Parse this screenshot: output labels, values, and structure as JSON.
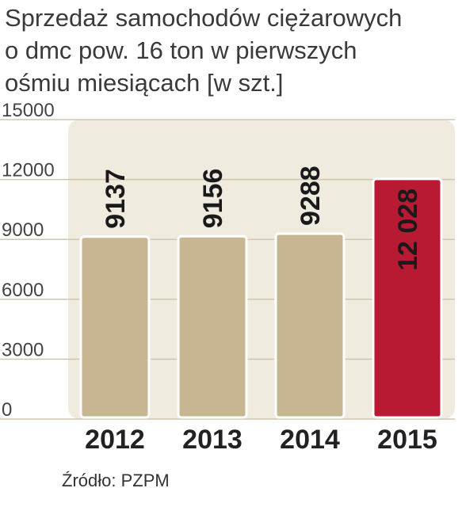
{
  "title_lines": [
    "Sprzedaż samochodów ciężarowych",
    "o dmc pow. 16 ton w pierwszych",
    "ośmiu miesiącach [w szt.]"
  ],
  "source": "Źródło: PZPM",
  "chart_data": {
    "type": "bar",
    "title": "Sprzedaż samochodów ciężarowych o dmc pow. 16 ton w pierwszych ośmiu miesiącach [w szt.]",
    "categories": [
      "2012",
      "2013",
      "2014",
      "2015"
    ],
    "values": [
      9137,
      9156,
      9288,
      12028
    ],
    "value_labels": [
      "9137",
      "9156",
      "9288",
      "12 028"
    ],
    "ylim": [
      0,
      15000
    ],
    "yticks": [
      0,
      3000,
      6000,
      9000,
      12000,
      15000
    ],
    "ytick_labels": [
      "0",
      "3000",
      "6000",
      "9000",
      "12000",
      "15000"
    ],
    "grid": true,
    "colors": {
      "bar": "#c7b691",
      "highlight": "#b71a32",
      "plot_background": "#f0ebdf",
      "grid": "#cfc6b2",
      "label": "#1a1a1a"
    },
    "highlight_index": 3
  }
}
